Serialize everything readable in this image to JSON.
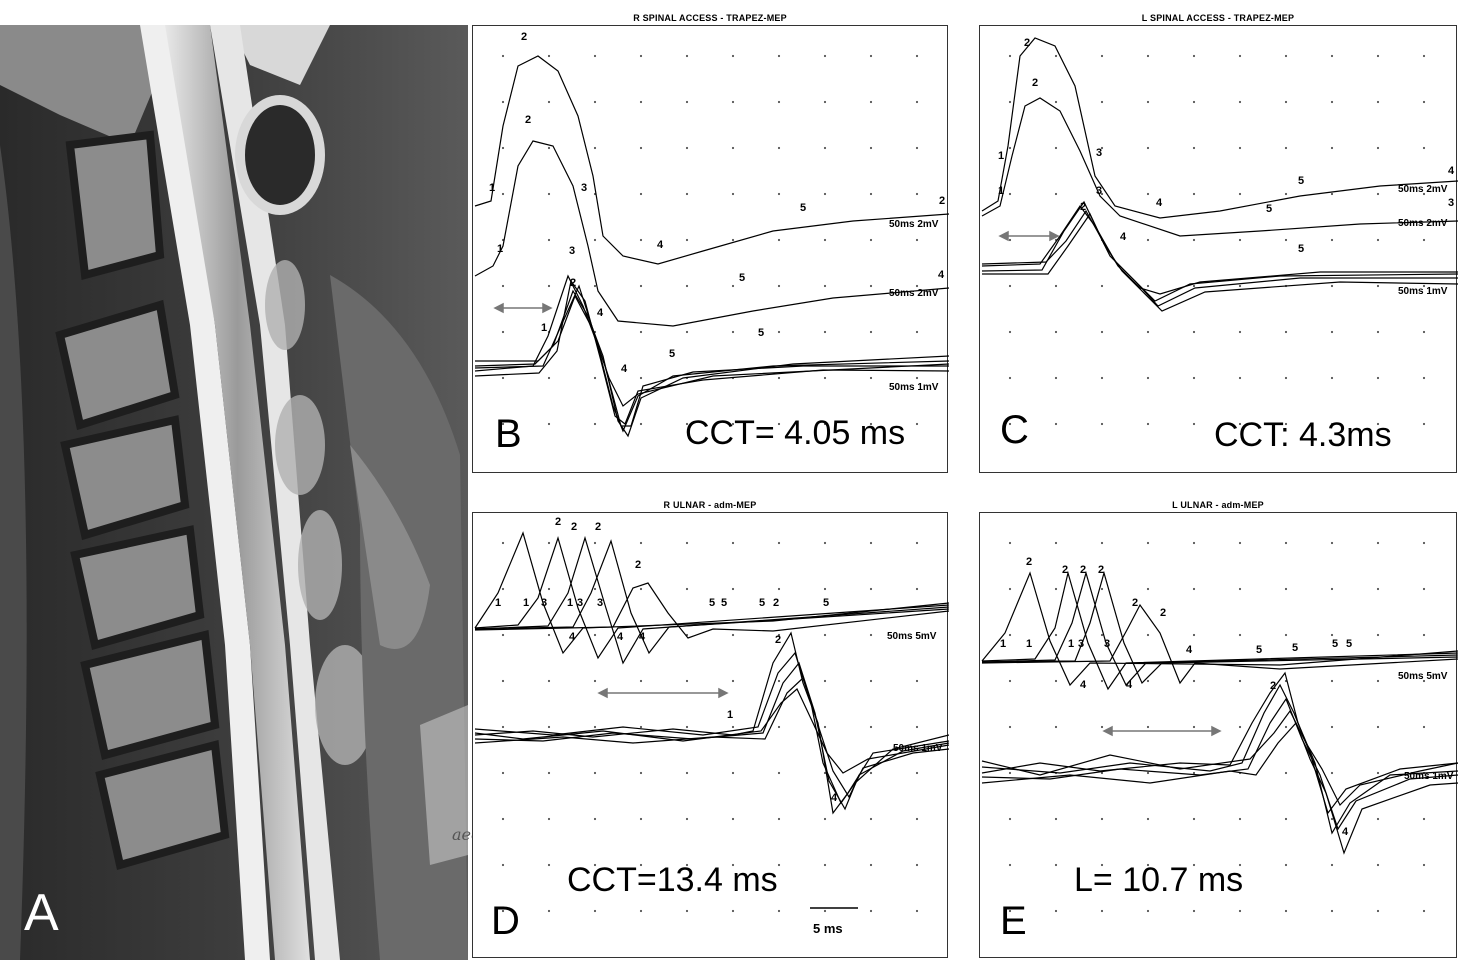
{
  "panel_a": {
    "letter": "A"
  },
  "panel_b": {
    "title": "R SPINAL ACCESS - TRAPEZ-MEP",
    "letter": "B",
    "measurement": "CCT= 4.05 ms"
  },
  "panel_c": {
    "title": "L SPINAL ACCESS - TRAPEZ-MEP",
    "letter": "C",
    "measurement": "CCT: 4.3ms"
  },
  "panel_d": {
    "title": "R ULNAR - adm-MEP",
    "letter": "D",
    "measurement": "CCT=13.4 ms",
    "scale_bar": "5 ms"
  },
  "panel_e": {
    "title": "L ULNAR - adm-MEP",
    "letter": "E",
    "measurement": "L= 10.7 ms"
  },
  "signature": "aeö",
  "colors": {
    "trace": "#000000",
    "grid_dot": "#555555",
    "arrow": "#808080",
    "mri_dark": "#2e2e2e",
    "mri_cord": "#a0a0a0"
  },
  "trace_labels": {
    "b_upper": "50ms 2mV",
    "b_mid": "50ms 2mV",
    "b_lower": "50ms 1mV",
    "c_upper": "50ms 2mV",
    "c_mid": "50ms 2mV",
    "c_lower": "50ms 1mV",
    "d_upper": "50ms 5mV",
    "d_lower": "50ms 1mV",
    "e_upper": "50ms 5mV",
    "e_lower": "50ms 1mV"
  }
}
